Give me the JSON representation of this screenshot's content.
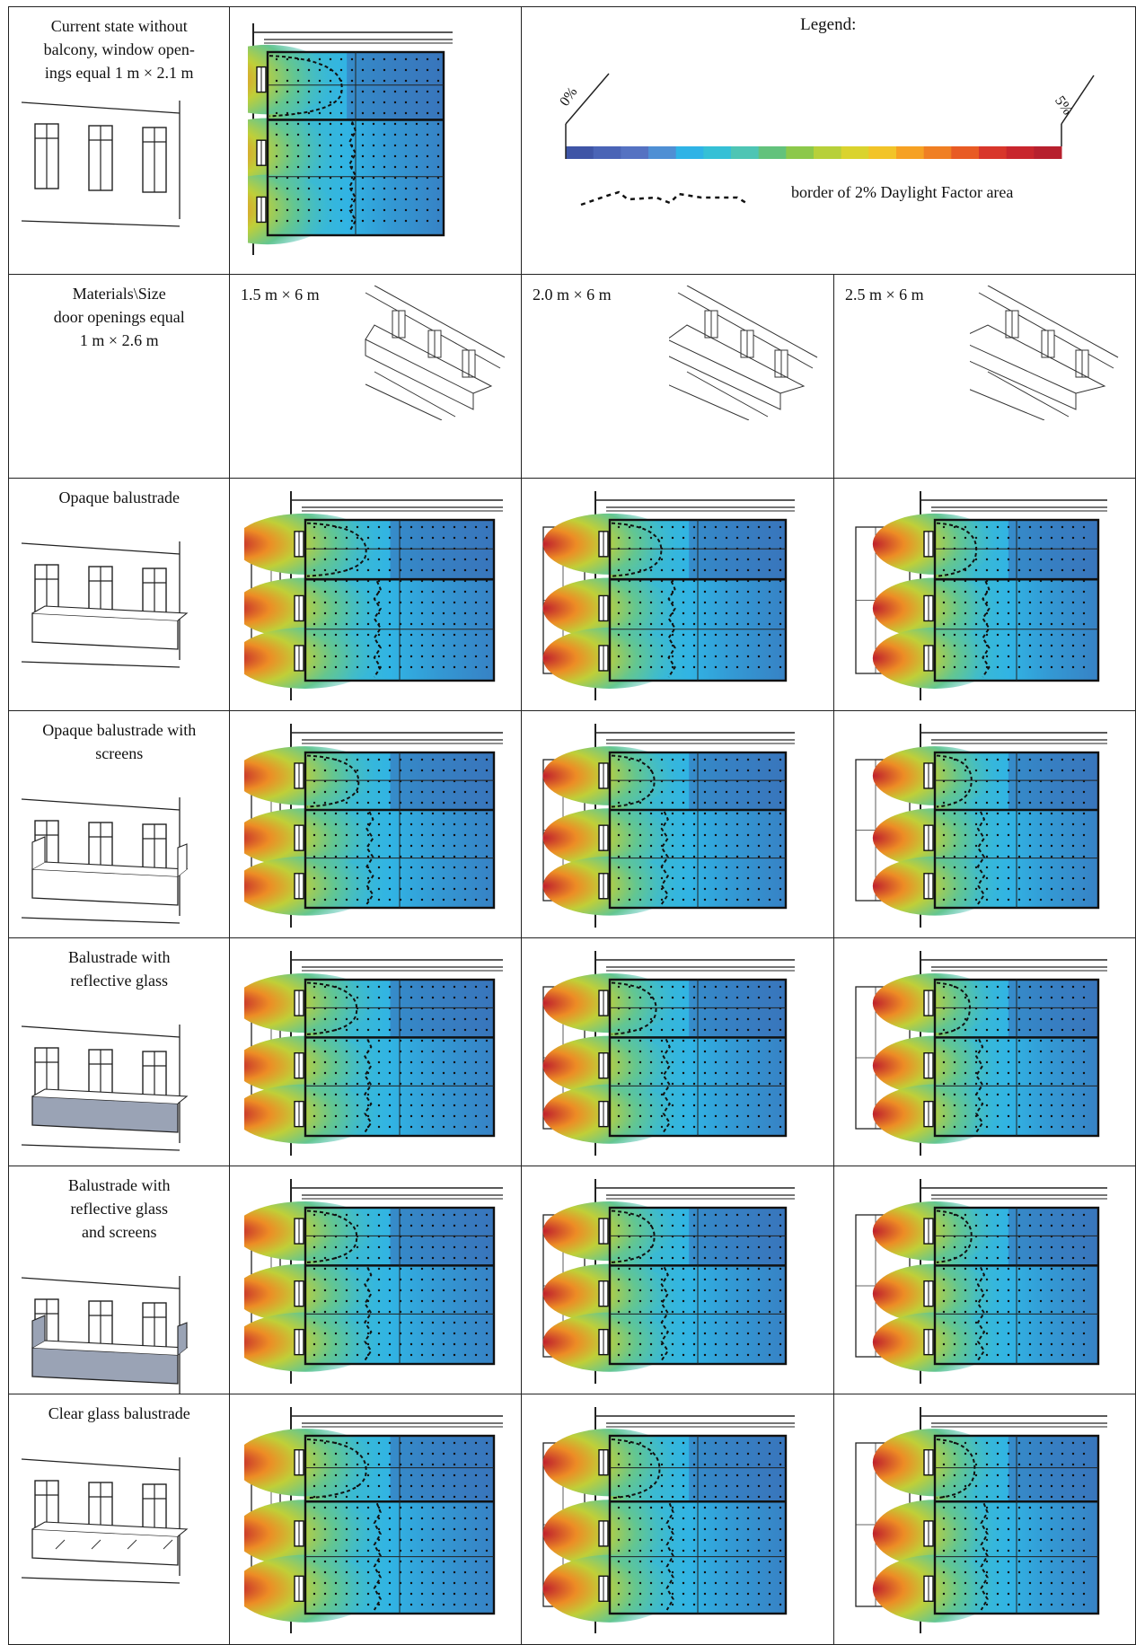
{
  "row_labels": {
    "current": "Current state without\nbalcony, window open-\nings equal 1 m × 2.1 m",
    "materials_size": "Materials\\Size\ndoor openings equal\n1 m × 2.6 m",
    "opaque": "Opaque balustrade",
    "opaque_screens": "Opaque balustrade with\nscreens",
    "reflective": "Balustrade with\nreflective glass",
    "reflective_screens": "Balustrade with\nreflective glass\nand screens",
    "clear": "Clear glass balustrade"
  },
  "sizes": [
    "1.5 m × 6 m",
    "2.0 m × 6 m",
    "2.5 m × 6 m"
  ],
  "legend": {
    "title": "Legend:",
    "min_label": "0%",
    "max_label": "5%",
    "border_text": "border of 2% Daylight Factor area",
    "colors": [
      "#3f55a6",
      "#4a64b6",
      "#5572c2",
      "#4f8fd4",
      "#2fb3e6",
      "#35c0d6",
      "#4ec5b4",
      "#63c27c",
      "#8cc84b",
      "#b7d03a",
      "#dad32e",
      "#f2c428",
      "#f6a123",
      "#f07f23",
      "#e85b24",
      "#d8362b",
      "#c8262d",
      "#b7202e"
    ]
  },
  "chart_data": {
    "type": "heatmap",
    "scale_range_percent": [
      0,
      5
    ],
    "threshold_percent": 2,
    "cases": [
      {
        "row": "Current state without balcony",
        "size": "",
        "relative_2pct_depth": 0.42
      },
      {
        "row": "Opaque balustrade",
        "size": "1.5 m × 6 m",
        "relative_2pct_depth": 0.32
      },
      {
        "row": "Opaque balustrade",
        "size": "2.0 m × 6 m",
        "relative_2pct_depth": 0.29
      },
      {
        "row": "Opaque balustrade",
        "size": "2.5 m × 6 m",
        "relative_2pct_depth": 0.25
      },
      {
        "row": "Opaque balustrade with screens",
        "size": "1.5 m × 6 m",
        "relative_2pct_depth": 0.28
      },
      {
        "row": "Opaque balustrade with screens",
        "size": "2.0 m × 6 m",
        "relative_2pct_depth": 0.25
      },
      {
        "row": "Opaque balustrade with screens",
        "size": "2.5 m × 6 m",
        "relative_2pct_depth": 0.22
      },
      {
        "row": "Balustrade with reflective glass",
        "size": "1.5 m × 6 m",
        "relative_2pct_depth": 0.27
      },
      {
        "row": "Balustrade with reflective glass",
        "size": "2.0 m × 6 m",
        "relative_2pct_depth": 0.26
      },
      {
        "row": "Balustrade with reflective glass",
        "size": "2.5 m × 6 m",
        "relative_2pct_depth": 0.21
      },
      {
        "row": "Balustrade with reflective glass and screens",
        "size": "1.5 m × 6 m",
        "relative_2pct_depth": 0.27
      },
      {
        "row": "Balustrade with reflective glass and screens",
        "size": "2.0 m × 6 m",
        "relative_2pct_depth": 0.25
      },
      {
        "row": "Balustrade with reflective glass and screens",
        "size": "2.5 m × 6 m",
        "relative_2pct_depth": 0.22
      },
      {
        "row": "Clear glass balustrade",
        "size": "1.5 m × 6 m",
        "relative_2pct_depth": 0.32
      },
      {
        "row": "Clear glass balustrade",
        "size": "2.0 m × 6 m",
        "relative_2pct_depth": 0.28
      },
      {
        "row": "Clear glass balustrade",
        "size": "2.5 m × 6 m",
        "relative_2pct_depth": 0.24
      }
    ]
  }
}
